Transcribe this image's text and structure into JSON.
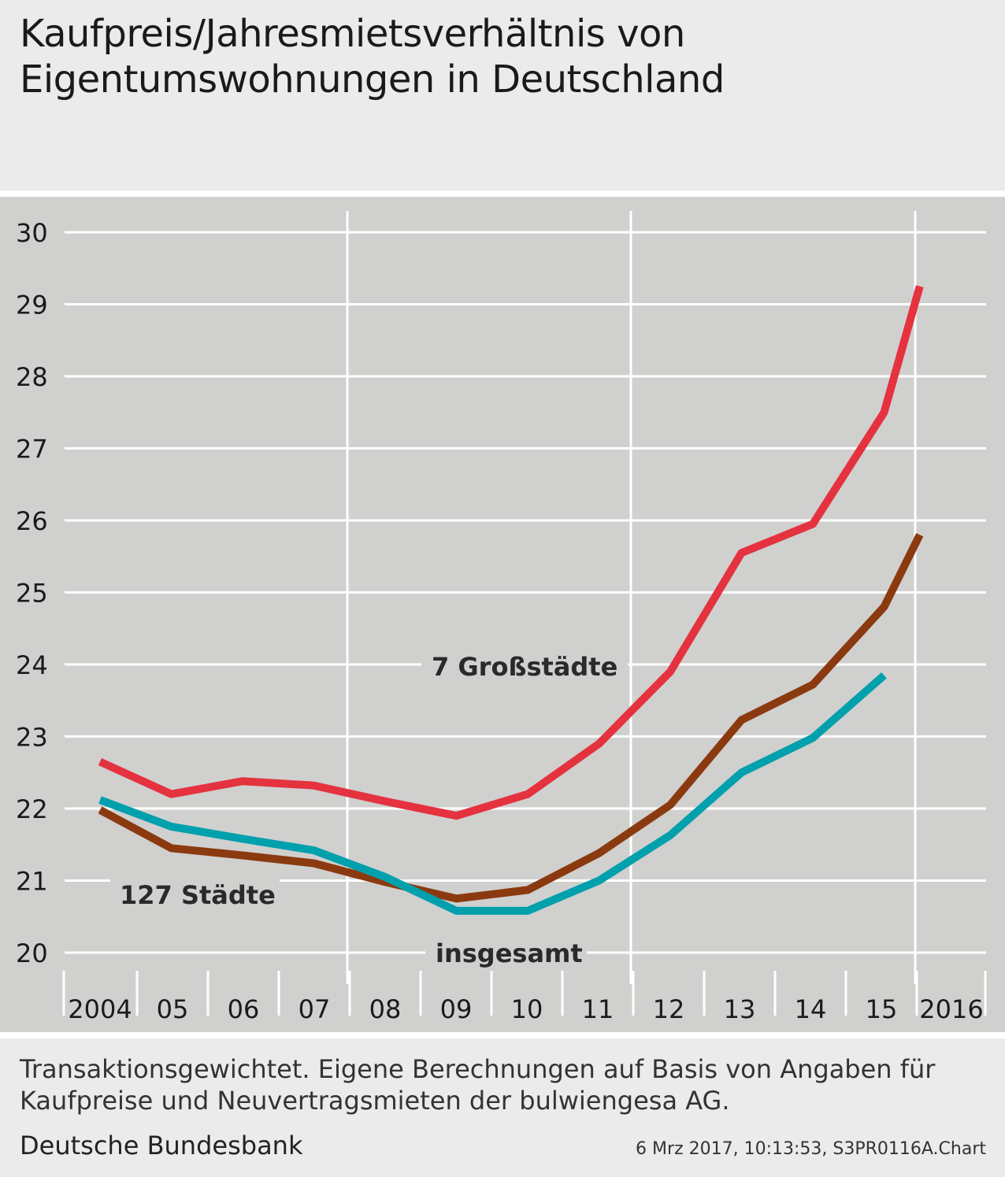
{
  "title_line1": "Kaufpreis/Jahresmietsverhältnis von",
  "title_line2": "Eigentumswohnungen in Deutschland",
  "footnote_line1": "Transaktionsgewichtet. Eigene Berechnungen auf Basis von Angaben für",
  "footnote_line2": "Kaufpreise und Neuvertragsmieten der bulwiengesa AG.",
  "source": "Deutsche Bundesbank",
  "timestamp": "6 Mrz 2017, 10:13:53, S3PR0116A.Chart",
  "chart_data": {
    "type": "line",
    "title": "Kaufpreis/Jahresmietsverhältnis von Eigentumswohnungen in Deutschland",
    "x_tick_labels": [
      "2004",
      "05",
      "06",
      "07",
      "08",
      "09",
      "10",
      "11",
      "12",
      "13",
      "14",
      "15",
      "2016"
    ],
    "ylim": [
      20,
      30
    ],
    "y_ticks": [
      20,
      21,
      22,
      23,
      24,
      25,
      26,
      27,
      28,
      29,
      30
    ],
    "grid": true,
    "colors": {
      "background": "#d0d0cf",
      "grid": "#ffffff"
    },
    "series": [
      {
        "name": "7 Großstädte",
        "color": "#e5323f",
        "points": [
          {
            "x": 2004.0,
            "y": 22.65
          },
          {
            "x": 2005.0,
            "y": 22.2
          },
          {
            "x": 2006.0,
            "y": 22.38
          },
          {
            "x": 2007.0,
            "y": 22.32
          },
          {
            "x": 2008.0,
            "y": 22.1
          },
          {
            "x": 2009.0,
            "y": 21.9
          },
          {
            "x": 2010.0,
            "y": 22.2
          },
          {
            "x": 2011.0,
            "y": 22.9
          },
          {
            "x": 2012.0,
            "y": 23.9
          },
          {
            "x": 2013.0,
            "y": 25.55
          },
          {
            "x": 2014.0,
            "y": 25.95
          },
          {
            "x": 2015.0,
            "y": 27.5
          },
          {
            "x": 2015.5,
            "y": 29.25
          }
        ]
      },
      {
        "name": "127 Städte",
        "color": "#8b3a10",
        "points": [
          {
            "x": 2004.0,
            "y": 21.98
          },
          {
            "x": 2005.0,
            "y": 21.45
          },
          {
            "x": 2006.0,
            "y": 21.35
          },
          {
            "x": 2007.0,
            "y": 21.24
          },
          {
            "x": 2008.0,
            "y": 20.98
          },
          {
            "x": 2009.0,
            "y": 20.75
          },
          {
            "x": 2010.0,
            "y": 20.87
          },
          {
            "x": 2011.0,
            "y": 21.38
          },
          {
            "x": 2012.0,
            "y": 22.05
          },
          {
            "x": 2013.0,
            "y": 23.23
          },
          {
            "x": 2014.0,
            "y": 23.72
          },
          {
            "x": 2015.0,
            "y": 24.8
          },
          {
            "x": 2015.5,
            "y": 25.8
          }
        ]
      },
      {
        "name": "insgesamt",
        "color": "#00a0ad",
        "points": [
          {
            "x": 2004.0,
            "y": 22.12
          },
          {
            "x": 2005.0,
            "y": 21.75
          },
          {
            "x": 2006.0,
            "y": 21.58
          },
          {
            "x": 2007.0,
            "y": 21.42
          },
          {
            "x": 2008.0,
            "y": 21.05
          },
          {
            "x": 2009.0,
            "y": 20.58
          },
          {
            "x": 2010.0,
            "y": 20.58
          },
          {
            "x": 2011.0,
            "y": 21.0
          },
          {
            "x": 2012.0,
            "y": 21.63
          },
          {
            "x": 2013.0,
            "y": 22.5
          },
          {
            "x": 2014.0,
            "y": 22.98
          },
          {
            "x": 2015.0,
            "y": 23.85
          }
        ]
      }
    ]
  }
}
